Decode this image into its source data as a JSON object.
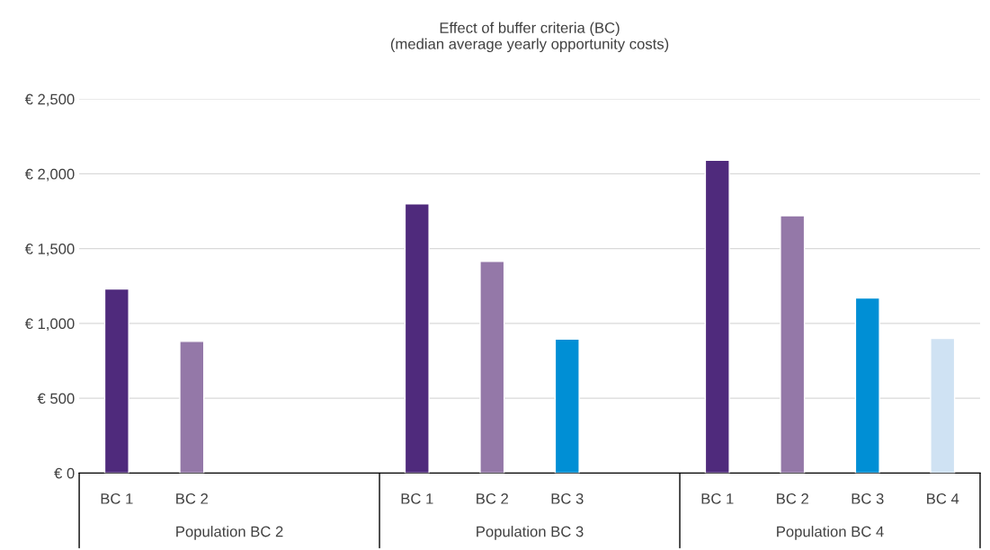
{
  "chart_data": {
    "type": "bar",
    "title": "Effect of buffer criteria (BC)\n(median average yearly opportunity costs)",
    "categories": [
      "BC 1",
      "BC 2",
      null,
      null,
      "BC 1",
      "BC 2",
      "BC 3",
      null,
      "BC 1",
      "BC 2",
      "BC 3",
      "BC 4"
    ],
    "values": [
      1230,
      880,
      null,
      null,
      1800,
      1415,
      895,
      null,
      2090,
      1720,
      1170,
      900
    ],
    "colors": [
      "#4f2a7c",
      "#9478a8",
      "#ffffff",
      "#ffffff",
      "#4f2a7c",
      "#9478a8",
      "#008fd5",
      "#ffffff",
      "#4f2a7c",
      "#9478a8",
      "#008fd5",
      "#cfe2f3"
    ],
    "ylim": [
      0,
      2500
    ],
    "yticks": [
      {
        "value": 0,
        "label": "€ 0"
      },
      {
        "value": 500,
        "label": "€ 500"
      },
      {
        "value": 1000,
        "label": "€ 1,000"
      },
      {
        "value": 1500,
        "label": "€ 1,500"
      },
      {
        "value": 2000,
        "label": "€ 2,000"
      },
      {
        "value": 2500,
        "label": "€ 2,500"
      }
    ],
    "grid": "y",
    "annotations": [
      "Population BC 2",
      "Population BC 3",
      "Population BC 4"
    ]
  }
}
